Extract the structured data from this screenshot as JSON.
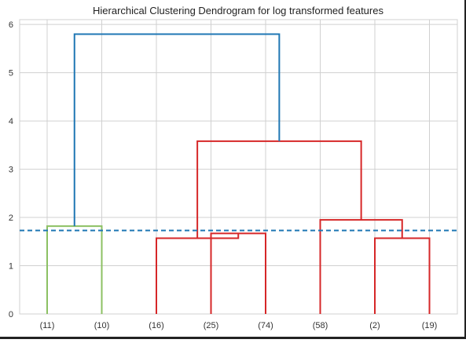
{
  "chart_data": {
    "type": "dendrogram",
    "title": "Hierarchical Clustering Dendrogram for log transformed features",
    "xlabel": "",
    "ylabel": "",
    "ylim": [
      0,
      6.1
    ],
    "yticks": [
      0,
      1,
      2,
      3,
      4,
      5,
      6
    ],
    "grid": true,
    "leaves": [
      "(11)",
      "(10)",
      "(16)",
      "(25)",
      "(74)",
      "(58)",
      "(2)",
      "(19)"
    ],
    "threshold": 1.73,
    "colors": {
      "cluster_green": "#8cc063",
      "cluster_red": "#d62728",
      "above_threshold": "#1f77b4",
      "threshold_line": "#1f77b4",
      "grid": "#d0d0d0"
    },
    "links": [
      {
        "left": 0,
        "right": 1,
        "left_height": 0,
        "right_height": 0,
        "height": 1.82,
        "color": "cluster_green"
      },
      {
        "left": 3,
        "right": 4,
        "left_height": 0,
        "right_height": 0,
        "height": 1.67,
        "color": "cluster_red"
      },
      {
        "left": 2,
        "right": 3.5,
        "left_height": 0,
        "right_height": 1.67,
        "height": 1.57,
        "color": "cluster_red"
      },
      {
        "left": 6,
        "right": 7,
        "left_height": 0,
        "right_height": 0,
        "height": 1.57,
        "color": "cluster_red"
      },
      {
        "left": 5,
        "right": 6.5,
        "left_height": 0,
        "right_height": 1.57,
        "height": 1.95,
        "color": "cluster_red"
      },
      {
        "left": 2.75,
        "right": 5.75,
        "left_height": 1.57,
        "right_height": 1.95,
        "height": 3.58,
        "color": "cluster_red"
      },
      {
        "left": 0.5,
        "right": 4.25,
        "left_height": 1.82,
        "right_height": 3.58,
        "height": 5.8,
        "color": "above_threshold"
      }
    ]
  }
}
